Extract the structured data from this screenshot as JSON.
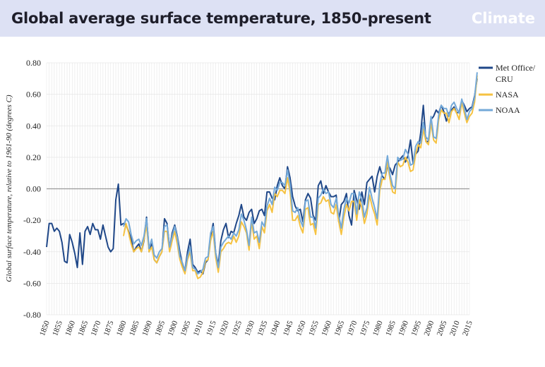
{
  "header": {
    "title": "Global average surface temperature, 1850-present",
    "brand": "Climate"
  },
  "colors": {
    "header_bg": "#dde1f4",
    "met_office": "#1f4788",
    "nasa": "#f5c242",
    "noaa": "#74a9d8",
    "grid": "#e6e6e6",
    "zero_line": "#9a9a9a"
  },
  "chart_data": {
    "type": "line",
    "title": "",
    "xlabel": "",
    "ylabel": "Global surface temperature, relative to 1961-90 (degrees C)",
    "xlim": [
      1850,
      2015
    ],
    "ylim": [
      -0.8,
      0.8
    ],
    "x_ticks": [
      "1850",
      "1855",
      "1860",
      "1865",
      "1870",
      "1875",
      "1880",
      "1885",
      "1890",
      "1895",
      "1900",
      "1905",
      "1910",
      "1915",
      "1920",
      "1925",
      "1930",
      "1935",
      "1940",
      "1945",
      "1950",
      "1955",
      "1960",
      "1965",
      "1970",
      "1975",
      "1980",
      "1985",
      "1990",
      "1995",
      "2000",
      "2005",
      "2010",
      "2015"
    ],
    "y_ticks": [
      "-0.80",
      "-0.60",
      "-0.40",
      "-0.20",
      "0.00",
      "0.20",
      "0.40",
      "0.60",
      "0.80"
    ],
    "y_tick_values": [
      -0.8,
      -0.6,
      -0.4,
      -0.2,
      0.0,
      0.2,
      0.4,
      0.6,
      0.8
    ],
    "grid": true,
    "legend_position": "right",
    "series": [
      {
        "name": "Met Office/\nCRU",
        "color": "#1f4788",
        "start_year": 1850,
        "values": [
          -0.37,
          -0.22,
          -0.22,
          -0.27,
          -0.25,
          -0.27,
          -0.34,
          -0.46,
          -0.47,
          -0.29,
          -0.34,
          -0.41,
          -0.5,
          -0.28,
          -0.48,
          -0.27,
          -0.24,
          -0.29,
          -0.22,
          -0.26,
          -0.26,
          -0.32,
          -0.23,
          -0.3,
          -0.37,
          -0.4,
          -0.38,
          -0.07,
          0.03,
          -0.23,
          -0.22,
          -0.23,
          -0.27,
          -0.32,
          -0.4,
          -0.37,
          -0.35,
          -0.4,
          -0.33,
          -0.18,
          -0.4,
          -0.35,
          -0.45,
          -0.47,
          -0.43,
          -0.4,
          -0.19,
          -0.22,
          -0.38,
          -0.28,
          -0.23,
          -0.3,
          -0.4,
          -0.48,
          -0.52,
          -0.4,
          -0.32,
          -0.48,
          -0.5,
          -0.53,
          -0.52,
          -0.54,
          -0.47,
          -0.45,
          -0.3,
          -0.22,
          -0.41,
          -0.48,
          -0.33,
          -0.26,
          -0.22,
          -0.31,
          -0.27,
          -0.28,
          -0.22,
          -0.17,
          -0.1,
          -0.18,
          -0.2,
          -0.15,
          -0.13,
          -0.22,
          -0.19,
          -0.14,
          -0.13,
          -0.17,
          -0.02,
          -0.02,
          -0.06,
          -0.07,
          0.02,
          0.07,
          0.02,
          0.0,
          0.14,
          0.07,
          -0.05,
          -0.11,
          -0.14,
          -0.13,
          -0.21,
          -0.07,
          -0.03,
          -0.06,
          -0.17,
          -0.2,
          0.02,
          0.05,
          -0.03,
          0.02,
          -0.02,
          -0.05,
          -0.05,
          -0.04,
          -0.21,
          -0.1,
          -0.08,
          -0.03,
          -0.17,
          -0.23,
          -0.01,
          -0.07,
          -0.13,
          -0.02,
          -0.1,
          0.04,
          0.06,
          0.08,
          -0.02,
          0.08,
          0.14,
          0.08,
          0.06,
          0.15,
          0.13,
          0.09,
          0.15,
          0.17,
          0.19,
          0.21,
          0.17,
          0.21,
          0.31,
          0.16,
          0.22,
          0.24,
          0.36,
          0.53,
          0.3,
          0.3,
          0.44,
          0.46,
          0.5,
          0.48,
          0.53,
          0.49,
          0.43,
          0.48,
          0.5,
          0.52,
          0.48,
          0.49,
          0.56,
          0.53,
          0.49,
          0.51,
          0.52,
          0.59,
          0.7
        ]
      },
      {
        "name": "NASA",
        "color": "#f5c242",
        "start_year": 1880,
        "values": [
          -0.3,
          -0.22,
          -0.28,
          -0.35,
          -0.4,
          -0.38,
          -0.37,
          -0.4,
          -0.32,
          -0.23,
          -0.4,
          -0.37,
          -0.45,
          -0.47,
          -0.43,
          -0.4,
          -0.27,
          -0.27,
          -0.4,
          -0.33,
          -0.27,
          -0.35,
          -0.45,
          -0.5,
          -0.54,
          -0.45,
          -0.4,
          -0.52,
          -0.52,
          -0.57,
          -0.56,
          -0.53,
          -0.46,
          -0.45,
          -0.33,
          -0.27,
          -0.44,
          -0.53,
          -0.4,
          -0.38,
          -0.35,
          -0.34,
          -0.35,
          -0.3,
          -0.34,
          -0.3,
          -0.21,
          -0.24,
          -0.28,
          -0.39,
          -0.21,
          -0.32,
          -0.3,
          -0.38,
          -0.24,
          -0.28,
          -0.14,
          -0.1,
          -0.15,
          -0.03,
          -0.05,
          -0.01,
          -0.01,
          -0.03,
          0.07,
          -0.02,
          -0.2,
          -0.2,
          -0.17,
          -0.24,
          -0.28,
          -0.13,
          -0.12,
          -0.23,
          -0.22,
          -0.29,
          -0.1,
          -0.09,
          -0.05,
          -0.08,
          -0.07,
          -0.15,
          -0.16,
          -0.1,
          -0.21,
          -0.29,
          -0.18,
          -0.1,
          -0.14,
          -0.08,
          -0.08,
          -0.2,
          -0.07,
          -0.12,
          -0.22,
          -0.16,
          -0.04,
          -0.11,
          -0.16,
          -0.23,
          -0.01,
          0.06,
          0.06,
          0.17,
          0.06,
          -0.02,
          -0.03,
          0.17,
          0.14,
          0.15,
          0.2,
          0.17,
          0.11,
          0.12,
          0.22,
          0.28,
          0.26,
          0.38,
          0.3,
          0.28,
          0.42,
          0.31,
          0.29,
          0.44,
          0.5,
          0.48,
          0.48,
          0.42,
          0.49,
          0.51,
          0.48,
          0.44,
          0.55,
          0.48,
          0.42,
          0.46,
          0.48,
          0.55,
          0.72
        ]
      },
      {
        "name": "NOAA",
        "color": "#74a9d8",
        "start_year": 1880,
        "values": [
          -0.24,
          -0.19,
          -0.21,
          -0.29,
          -0.35,
          -0.33,
          -0.32,
          -0.36,
          -0.3,
          -0.19,
          -0.38,
          -0.32,
          -0.42,
          -0.44,
          -0.4,
          -0.38,
          -0.24,
          -0.23,
          -0.37,
          -0.3,
          -0.24,
          -0.31,
          -0.43,
          -0.47,
          -0.52,
          -0.43,
          -0.37,
          -0.5,
          -0.51,
          -0.54,
          -0.53,
          -0.51,
          -0.44,
          -0.43,
          -0.28,
          -0.24,
          -0.41,
          -0.5,
          -0.37,
          -0.34,
          -0.32,
          -0.3,
          -0.32,
          -0.28,
          -0.3,
          -0.26,
          -0.16,
          -0.2,
          -0.26,
          -0.36,
          -0.18,
          -0.28,
          -0.27,
          -0.34,
          -0.21,
          -0.24,
          -0.11,
          -0.06,
          -0.1,
          0.01,
          -0.01,
          0.04,
          0.04,
          0.02,
          0.12,
          0.03,
          -0.14,
          -0.15,
          -0.12,
          -0.2,
          -0.24,
          -0.08,
          -0.07,
          -0.18,
          -0.18,
          -0.25,
          -0.06,
          -0.04,
          0.0,
          -0.03,
          -0.02,
          -0.1,
          -0.12,
          -0.06,
          -0.17,
          -0.25,
          -0.13,
          -0.06,
          -0.09,
          -0.03,
          -0.03,
          -0.16,
          -0.02,
          -0.07,
          -0.18,
          -0.12,
          0.01,
          -0.06,
          -0.12,
          -0.19,
          0.03,
          0.1,
          0.1,
          0.21,
          0.09,
          0.02,
          0.0,
          0.2,
          0.18,
          0.19,
          0.25,
          0.22,
          0.15,
          0.16,
          0.27,
          0.3,
          0.29,
          0.42,
          0.33,
          0.31,
          0.46,
          0.33,
          0.32,
          0.47,
          0.53,
          0.51,
          0.51,
          0.46,
          0.53,
          0.55,
          0.51,
          0.48,
          0.57,
          0.51,
          0.44,
          0.49,
          0.51,
          0.58,
          0.74
        ]
      }
    ]
  }
}
